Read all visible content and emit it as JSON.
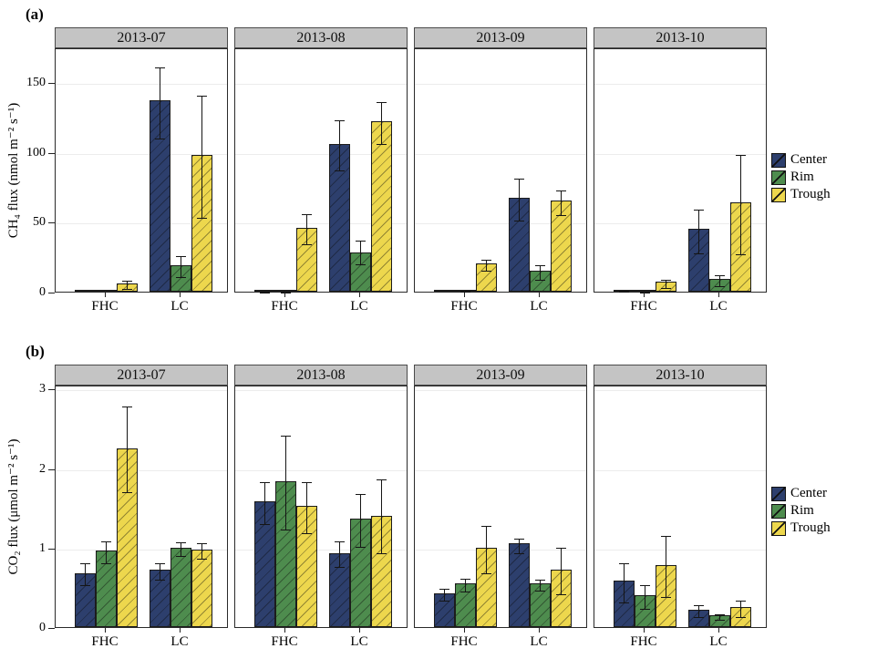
{
  "chart_data": [
    {
      "type": "bar",
      "panel_label": "(a)",
      "ylabel": "CH₄ flux (nmol m⁻² s⁻¹)",
      "ylim": [
        0,
        175
      ],
      "yticks": [
        0,
        50,
        100,
        150
      ],
      "grid": "light horizontal at ticks",
      "legend_position": "right",
      "facets": [
        "2013-07",
        "2013-08",
        "2013-09",
        "2013-10"
      ],
      "groups": [
        "FHC",
        "LC"
      ],
      "series": [
        "Center",
        "Rim",
        "Trough"
      ],
      "colors": [
        "#2d3f6d",
        "#4e8c4e",
        "#edd74d"
      ],
      "data": [
        {
          "facet": "2013-07",
          "bars": [
            {
              "group": "FHC",
              "values": [
                0.5,
                0.5,
                6
              ],
              "err_lo": [
                0.2,
                0.2,
                3
              ],
              "err_hi": [
                0.8,
                0.8,
                9
              ]
            },
            {
              "group": "LC",
              "values": [
                137,
                19,
                98
              ],
              "err_lo": [
                111,
                12,
                54
              ],
              "err_hi": [
                162,
                27,
                142
              ]
            }
          ]
        },
        {
          "facet": "2013-08",
          "bars": [
            {
              "group": "FHC",
              "values": [
                1,
                1,
                46
              ],
              "err_lo": [
                0.5,
                0.5,
                35
              ],
              "err_hi": [
                1.5,
                1.5,
                57
              ]
            },
            {
              "group": "LC",
              "values": [
                106,
                28,
                122
              ],
              "err_lo": [
                88,
                21,
                107
              ],
              "err_hi": [
                124,
                38,
                137
              ]
            }
          ]
        },
        {
          "facet": "2013-09",
          "bars": [
            {
              "group": "FHC",
              "values": [
                0.5,
                1.5,
                20
              ],
              "err_lo": [
                0.3,
                1,
                16
              ],
              "err_hi": [
                0.8,
                2,
                24
              ]
            },
            {
              "group": "LC",
              "values": [
                67,
                15,
                65
              ],
              "err_lo": [
                52,
                10,
                56
              ],
              "err_hi": [
                82,
                20,
                74
              ]
            }
          ]
        },
        {
          "facet": "2013-10",
          "bars": [
            {
              "group": "FHC",
              "values": [
                1.5,
                1,
                7
              ],
              "err_lo": [
                1,
                0.5,
                4
              ],
              "err_hi": [
                2,
                1.5,
                10
              ]
            },
            {
              "group": "LC",
              "values": [
                45,
                9,
                64
              ],
              "err_lo": [
                29,
                5,
                28
              ],
              "err_hi": [
                60,
                13,
                99
              ]
            }
          ]
        }
      ]
    },
    {
      "type": "bar",
      "panel_label": "(b)",
      "ylabel": "CO₂ flux (μmol m⁻² s⁻¹)",
      "ylim": [
        0,
        3.05
      ],
      "yticks": [
        0,
        1,
        2,
        3
      ],
      "grid": "light horizontal at ticks",
      "legend_position": "right",
      "facets": [
        "2013-07",
        "2013-08",
        "2013-09",
        "2013-10"
      ],
      "groups": [
        "FHC",
        "LC"
      ],
      "series": [
        "Center",
        "Rim",
        "Trough"
      ],
      "colors": [
        "#2d3f6d",
        "#4e8c4e",
        "#edd74d"
      ],
      "data": [
        {
          "facet": "2013-07",
          "bars": [
            {
              "group": "FHC",
              "values": [
                0.68,
                0.96,
                2.25
              ],
              "err_lo": [
                0.55,
                0.83,
                1.72
              ],
              "err_hi": [
                0.82,
                1.1,
                2.8
              ]
            },
            {
              "group": "LC",
              "values": [
                0.72,
                1.0,
                0.98
              ],
              "err_lo": [
                0.62,
                0.92,
                0.88
              ],
              "err_hi": [
                0.82,
                1.09,
                1.08
              ]
            }
          ]
        },
        {
          "facet": "2013-08",
          "bars": [
            {
              "group": "FHC",
              "values": [
                1.58,
                1.84,
                1.52
              ],
              "err_lo": [
                1.32,
                1.25,
                1.2
              ],
              "err_hi": [
                1.85,
                2.43,
                1.85
              ]
            },
            {
              "group": "LC",
              "values": [
                0.93,
                1.37,
                1.4
              ],
              "err_lo": [
                0.78,
                1.03,
                0.95
              ],
              "err_hi": [
                1.1,
                1.7,
                1.88
              ]
            }
          ]
        },
        {
          "facet": "2013-09",
          "bars": [
            {
              "group": "FHC",
              "values": [
                0.42,
                0.55,
                1.0
              ],
              "err_lo": [
                0.35,
                0.47,
                0.7
              ],
              "err_hi": [
                0.5,
                0.63,
                1.3
              ]
            },
            {
              "group": "LC",
              "values": [
                1.05,
                0.55,
                0.72
              ],
              "err_lo": [
                0.95,
                0.48,
                0.43
              ],
              "err_hi": [
                1.13,
                0.62,
                1.02
              ]
            }
          ]
        },
        {
          "facet": "2013-10",
          "bars": [
            {
              "group": "FHC",
              "values": [
                0.58,
                0.4,
                0.78
              ],
              "err_lo": [
                0.33,
                0.25,
                0.4
              ],
              "err_hi": [
                0.83,
                0.55,
                1.17
              ]
            },
            {
              "group": "LC",
              "values": [
                0.22,
                0.15,
                0.25
              ],
              "err_lo": [
                0.15,
                0.12,
                0.15
              ],
              "err_hi": [
                0.3,
                0.18,
                0.35
              ]
            }
          ]
        }
      ]
    }
  ]
}
